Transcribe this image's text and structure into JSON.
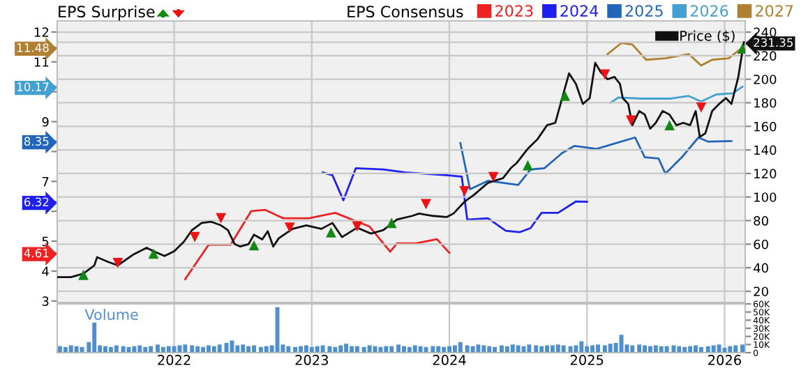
{
  "chart_data": [
    {
      "type": "line",
      "legend_title": "EPS Consensus",
      "legend": "top",
      "grid": true,
      "tick_labels": "y",
      "annotations": [
        "EPS Surprise"
      ],
      "xlim": [
        2021.15,
        2026.15
      ],
      "xticks": [
        {
          "value": 2022,
          "label": null
        },
        {
          "value": 2023,
          "label": null
        },
        {
          "value": 2024,
          "label": null
        },
        {
          "value": 2025,
          "label": null
        },
        {
          "value": 2026,
          "label": null
        }
      ],
      "ylim": [
        2.95,
        12.37
      ],
      "yticks": [
        3,
        4,
        5,
        {
          "value": 6,
          "label": null
        },
        7,
        {
          "value": 8,
          "label": null
        },
        9,
        {
          "value": 10,
          "label": null
        },
        11,
        12,
        4.61,
        6.32,
        8.35,
        10.17,
        11.48
      ],
      "y2lim": [
        10.5,
        249.5
      ],
      "y2ticks": [
        20,
        40,
        60,
        80,
        100,
        120,
        140,
        160,
        180,
        200,
        220,
        240,
        231.35
      ],
      "series": [
        {
          "name": "2023",
          "color": "#ee2222",
          "x": [
            2022.08,
            2022.25,
            2022.41,
            2022.56,
            2022.66,
            2022.79,
            2022.98,
            2023.17,
            2023.42,
            2023.57,
            2023.62,
            2023.76,
            2023.91,
            2024.0
          ],
          "values": [
            3.73,
            4.88,
            4.88,
            6.01,
            6.05,
            5.77,
            5.77,
            5.95,
            5.49,
            4.65,
            4.93,
            4.93,
            5.07,
            4.61
          ]
        },
        {
          "name": "2024",
          "color": "#2020ee",
          "x": [
            2023.08,
            2023.15,
            2023.23,
            2023.32,
            2023.52,
            2023.68,
            2023.98,
            2024.09,
            2024.13,
            2024.28,
            2024.41,
            2024.51,
            2024.59,
            2024.67,
            2024.79,
            2024.92,
            2025.0
          ],
          "values": [
            7.3,
            7.21,
            6.37,
            7.44,
            7.4,
            7.3,
            7.21,
            7.16,
            5.72,
            5.77,
            5.35,
            5.3,
            5.44,
            5.95,
            5.95,
            6.33,
            6.32
          ]
        },
        {
          "name": "2025",
          "color": "#2266bb",
          "x": [
            2024.08,
            2024.15,
            2024.28,
            2024.5,
            2024.59,
            2024.69,
            2024.82,
            2024.91,
            2025.07,
            2025.35,
            2025.42,
            2025.52,
            2025.57,
            2025.69,
            2025.81,
            2025.88,
            2026.05
          ],
          "values": [
            8.28,
            6.74,
            7.02,
            6.88,
            7.4,
            7.44,
            7.95,
            8.19,
            8.09,
            8.47,
            7.81,
            7.77,
            7.26,
            7.81,
            8.47,
            8.33,
            8.35
          ]
        },
        {
          "name": "2026",
          "color": "#44a0d0",
          "x": [
            2025.17,
            2025.23,
            2025.4,
            2025.6,
            2025.74,
            2025.83,
            2025.94,
            2026.06,
            2026.13
          ],
          "values": [
            9.63,
            9.81,
            9.77,
            9.77,
            9.86,
            9.67,
            9.91,
            9.95,
            10.17
          ]
        },
        {
          "name": "2027",
          "color": "#b08030",
          "x": [
            2025.15,
            2025.25,
            2025.33,
            2025.43,
            2025.57,
            2025.74,
            2025.83,
            2025.91,
            2026.03,
            2026.13
          ],
          "values": [
            11.26,
            11.63,
            11.58,
            11.07,
            11.12,
            11.26,
            10.88,
            11.07,
            11.12,
            11.48
          ]
        },
        {
          "name": "Price ($)",
          "color": "#111111",
          "axis": "y2",
          "x": [
            2021.15,
            2021.25,
            2021.34,
            2021.42,
            2021.44,
            2021.52,
            2021.59,
            2021.7,
            2021.8,
            2021.85,
            2021.93,
            2022.0,
            2022.07,
            2022.13,
            2022.2,
            2022.27,
            2022.34,
            2022.39,
            2022.44,
            2022.48,
            2022.54,
            2022.58,
            2022.64,
            2022.68,
            2022.72,
            2022.76,
            2022.86,
            2022.96,
            2023.07,
            2023.15,
            2023.22,
            2023.33,
            2023.43,
            2023.52,
            2023.62,
            2023.73,
            2023.78,
            2023.88,
            2023.98,
            2024.03,
            2024.11,
            2024.18,
            2024.28,
            2024.39,
            2024.45,
            2024.49,
            2024.57,
            2024.64,
            2024.71,
            2024.77,
            2024.82,
            2024.87,
            2024.92,
            2024.97,
            2025.02,
            2025.06,
            2025.1,
            2025.15,
            2025.2,
            2025.24,
            2025.26,
            2025.3,
            2025.33,
            2025.38,
            2025.42,
            2025.46,
            2025.5,
            2025.55,
            2025.6,
            2025.65,
            2025.7,
            2025.75,
            2025.79,
            2025.82,
            2025.86,
            2025.91,
            2025.96,
            2026.01,
            2026.05,
            2026.1,
            2026.14
          ],
          "values": [
            32,
            32,
            35,
            42,
            49,
            45,
            42,
            51,
            57,
            54,
            50,
            54,
            62,
            72,
            78,
            79,
            76,
            72,
            60,
            58,
            60,
            68,
            64,
            71,
            58,
            65,
            73,
            76,
            73,
            78,
            66,
            74,
            69,
            72,
            81,
            84,
            86,
            84,
            83,
            86,
            96,
            102,
            112,
            116,
            125,
            129,
            141,
            149,
            161,
            163,
            184,
            205,
            196,
            179,
            184,
            214,
            206,
            200,
            202,
            196,
            184,
            179,
            161,
            173,
            170,
            158,
            163,
            173,
            170,
            161,
            163,
            161,
            173,
            151,
            154,
            173,
            179,
            184,
            179,
            202,
            231.35
          ]
        },
        {
          "type": "scatter",
          "marker": "triangle",
          "color": "#118811",
          "axis": "y2",
          "x": [
            2021.34,
            2021.85,
            2022.58,
            2023.14,
            2023.58,
            2024.57,
            2024.84,
            2025.6,
            2026.13
          ],
          "values": [
            34,
            52,
            59,
            70,
            78,
            127,
            186,
            161,
            226
          ]
        },
        {
          "type": "scatter",
          "marker": "triangle-down",
          "color": "#ee1111",
          "axis": "y2",
          "x": [
            2021.59,
            2022.15,
            2022.34,
            2022.84,
            2023.33,
            2023.83,
            2024.11,
            2024.32,
            2025.13,
            2025.32,
            2025.83
          ],
          "values": [
            44,
            66,
            82,
            74,
            75,
            94,
            105,
            117,
            204,
            165,
            176
          ]
        }
      ]
    },
    {
      "type": "bar",
      "ylabel": "Volume",
      "grid": "x",
      "xlim": [
        2021.15,
        2026.15
      ],
      "xticks": [
        2022,
        2023,
        2024,
        2025,
        2026
      ],
      "y2lim": [
        0,
        60000
      ],
      "y2ticks": [
        0,
        {
          "value": 10000,
          "label": "10K"
        },
        {
          "value": 20000,
          "label": "20K"
        },
        {
          "value": 30000,
          "label": "30K"
        },
        {
          "value": 40000,
          "label": "40K"
        },
        {
          "value": 50000,
          "label": "50K"
        },
        {
          "value": 60000,
          "label": "60K"
        }
      ],
      "series": [
        {
          "color": "#4f8fcc",
          "axis": "y2",
          "x": [
            2021.17,
            2021.21,
            2021.25,
            2021.29,
            2021.33,
            2021.38,
            2021.42,
            2021.46,
            2021.5,
            2021.54,
            2021.58,
            2021.63,
            2021.67,
            2021.71,
            2021.75,
            2021.79,
            2021.83,
            2021.88,
            2021.92,
            2021.96,
            2022.0,
            2022.04,
            2022.08,
            2022.13,
            2022.17,
            2022.21,
            2022.25,
            2022.29,
            2022.33,
            2022.38,
            2022.42,
            2022.46,
            2022.5,
            2022.54,
            2022.58,
            2022.63,
            2022.67,
            2022.71,
            2022.75,
            2022.79,
            2022.83,
            2022.88,
            2022.92,
            2022.96,
            2023.0,
            2023.04,
            2023.08,
            2023.13,
            2023.17,
            2023.21,
            2023.25,
            2023.29,
            2023.33,
            2023.38,
            2023.42,
            2023.46,
            2023.5,
            2023.54,
            2023.58,
            2023.63,
            2023.67,
            2023.71,
            2023.75,
            2023.79,
            2023.83,
            2023.88,
            2023.92,
            2023.96,
            2024.0,
            2024.04,
            2024.08,
            2024.13,
            2024.17,
            2024.21,
            2024.25,
            2024.29,
            2024.33,
            2024.38,
            2024.42,
            2024.46,
            2024.5,
            2024.54,
            2024.58,
            2024.63,
            2024.67,
            2024.71,
            2024.75,
            2024.79,
            2024.83,
            2024.88,
            2024.92,
            2024.96,
            2025.0,
            2025.04,
            2025.08,
            2025.13,
            2025.17,
            2025.21,
            2025.25,
            2025.29,
            2025.33,
            2025.38,
            2025.42,
            2025.46,
            2025.5,
            2025.54,
            2025.58,
            2025.63,
            2025.67,
            2025.71,
            2025.75,
            2025.79,
            2025.83,
            2025.88,
            2025.92,
            2025.96,
            2026.0,
            2026.04,
            2026.08,
            2026.13
          ],
          "values": [
            8000,
            7000,
            9000,
            8000,
            7000,
            13000,
            37000,
            9000,
            8000,
            7000,
            9000,
            8000,
            7000,
            8000,
            9000,
            7000,
            8000,
            10000,
            7000,
            8000,
            8000,
            9000,
            10000,
            9000,
            8000,
            7000,
            9000,
            8000,
            10000,
            12000,
            15000,
            9000,
            10000,
            8000,
            9000,
            7000,
            8000,
            9000,
            56000,
            10000,
            8000,
            7000,
            8000,
            9000,
            7000,
            8000,
            9000,
            8000,
            7000,
            9000,
            11000,
            8000,
            8000,
            7000,
            9000,
            8000,
            7000,
            8000,
            8000,
            10000,
            8000,
            7000,
            9000,
            8000,
            7000,
            8000,
            8000,
            7000,
            8000,
            9000,
            13000,
            9000,
            8000,
            10000,
            9000,
            8000,
            7000,
            9000,
            8000,
            10000,
            9000,
            8000,
            10000,
            9000,
            8000,
            9000,
            9000,
            10000,
            9000,
            8000,
            9000,
            14000,
            8000,
            9000,
            10000,
            9000,
            11000,
            12000,
            22000,
            10000,
            9000,
            10000,
            9000,
            8000,
            9000,
            8000,
            8000,
            9000,
            8000,
            7000,
            8000,
            9000,
            7000,
            8000,
            9000,
            10000,
            6000,
            8000,
            9000,
            10000
          ]
        }
      ]
    }
  ]
}
